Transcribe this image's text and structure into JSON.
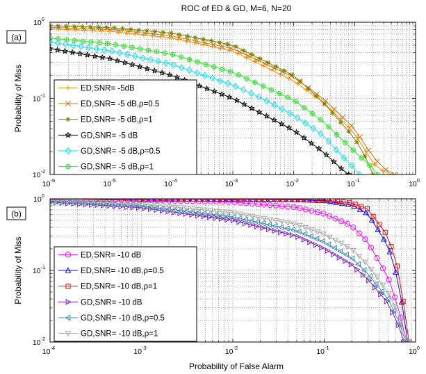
{
  "figure": {
    "title": "ROC of ED & GD, M=6, N=20",
    "xlabel": "Probability of False Alarm"
  },
  "chart_data": [
    {
      "type": "line",
      "panel_label": "(a)",
      "ylabel": "Probability of Miss",
      "xscale": "log",
      "yscale": "log",
      "xlim": [
        1e-06,
        1
      ],
      "ylim": [
        0.01,
        1
      ],
      "grid": true,
      "legend_position": "bottom-left",
      "x_ticks": [
        "10",
        "10",
        "10",
        "10",
        "10",
        "10",
        "10"
      ],
      "x_tick_exponents": [
        "-6",
        "-5",
        "-4",
        "-3",
        "-2",
        "-1",
        "0"
      ],
      "y_ticks": [
        "10",
        "10",
        "10"
      ],
      "y_tick_exponents": [
        "-2",
        "-1",
        "0"
      ],
      "series": [
        {
          "name": "ED,SNR= -5dB",
          "color": "#ff8c00",
          "marker": "plus",
          "x": [
            1e-06,
            1e-05,
            0.0001,
            0.001,
            0.01,
            0.03,
            0.1,
            0.2,
            0.3,
            0.4
          ],
          "y": [
            0.82,
            0.76,
            0.62,
            0.42,
            0.17,
            0.09,
            0.035,
            0.014,
            0.011,
            0.01
          ]
        },
        {
          "name": "ED,SNR= -5 dB,ρ=0.5",
          "color": "#c87814",
          "marker": "x",
          "x": [
            1e-06,
            1e-05,
            0.0001,
            0.001,
            0.01,
            0.03,
            0.1,
            0.2,
            0.3,
            0.45
          ],
          "y": [
            0.86,
            0.8,
            0.66,
            0.45,
            0.19,
            0.1,
            0.04,
            0.017,
            0.012,
            0.01
          ]
        },
        {
          "name": "ED,SNR= -5 dB,ρ=1",
          "color": "#808000",
          "marker": "star",
          "x": [
            1e-06,
            1e-05,
            0.0001,
            0.001,
            0.01,
            0.03,
            0.1,
            0.15,
            0.2
          ],
          "y": [
            0.9,
            0.85,
            0.72,
            0.5,
            0.2,
            0.09,
            0.03,
            0.017,
            0.01
          ]
        },
        {
          "name": "GD,SNR= -5 dB",
          "color": "#000000",
          "marker": "hexagram",
          "x": [
            1e-06,
            1e-05,
            0.0001,
            0.001,
            0.003,
            0.01,
            0.03,
            0.06,
            0.08
          ],
          "y": [
            0.45,
            0.33,
            0.2,
            0.1,
            0.063,
            0.038,
            0.02,
            0.012,
            0.01
          ]
        },
        {
          "name": "GD,SNR= -5 dB,ρ=0.5",
          "color": "#00e5ff",
          "marker": "diamond",
          "x": [
            1e-06,
            1e-05,
            0.0001,
            0.001,
            0.003,
            0.01,
            0.03,
            0.06,
            0.1,
            0.12
          ],
          "y": [
            0.55,
            0.42,
            0.28,
            0.15,
            0.1,
            0.06,
            0.033,
            0.018,
            0.012,
            0.01
          ]
        },
        {
          "name": "GD,SNR= -5 dB,ρ=1",
          "color": "#33e533",
          "marker": "circle-star",
          "x": [
            1e-06,
            1e-05,
            0.0001,
            0.001,
            0.01,
            0.03,
            0.1,
            0.2,
            0.24
          ],
          "y": [
            0.62,
            0.52,
            0.38,
            0.22,
            0.095,
            0.05,
            0.02,
            0.012,
            0.01
          ]
        }
      ]
    },
    {
      "type": "line",
      "panel_label": "(b)",
      "ylabel": "Probability of Miss",
      "xscale": "log",
      "yscale": "log",
      "xlim": [
        0.0001,
        1
      ],
      "ylim": [
        0.01,
        1
      ],
      "grid": true,
      "legend_position": "bottom-left",
      "x_ticks": [
        "10",
        "10",
        "10",
        "10",
        "10"
      ],
      "x_tick_exponents": [
        "-4",
        "-3",
        "-2",
        "-1",
        "0"
      ],
      "y_ticks": [
        "10",
        "10",
        "10"
      ],
      "y_tick_exponents": [
        "-2",
        "-1",
        "0"
      ],
      "series": [
        {
          "name": "ED,SNR= -10 dB",
          "color": "#ff00ff",
          "marker": "circle",
          "x": [
            0.0001,
            0.001,
            0.01,
            0.05,
            0.1,
            0.2,
            0.3,
            0.5,
            0.65,
            0.75,
            0.8
          ],
          "y": [
            0.98,
            0.96,
            0.9,
            0.76,
            0.62,
            0.42,
            0.25,
            0.08,
            0.03,
            0.014,
            0.01
          ]
        },
        {
          "name": "ED,SNR= -10 dB,ρ=0.5",
          "color": "#0000ff",
          "marker": "triangle-up",
          "x": [
            0.0001,
            0.001,
            0.01,
            0.05,
            0.1,
            0.2,
            0.3,
            0.5,
            0.65,
            0.75,
            0.82
          ],
          "y": [
            0.995,
            0.99,
            0.985,
            0.97,
            0.94,
            0.82,
            0.62,
            0.22,
            0.07,
            0.022,
            0.01
          ]
        },
        {
          "name": "ED,SNR= -10 dB,ρ=1",
          "color": "#ff0000",
          "marker": "square",
          "x": [
            0.0001,
            0.001,
            0.01,
            0.05,
            0.1,
            0.2,
            0.3,
            0.5,
            0.65,
            0.75,
            0.85
          ],
          "y": [
            0.995,
            0.993,
            0.99,
            0.98,
            0.96,
            0.88,
            0.72,
            0.3,
            0.1,
            0.03,
            0.01
          ]
        },
        {
          "name": "GD,SNR= -10 dB",
          "color": "#7a1fbf",
          "marker": "triangle-right",
          "x": [
            0.0001,
            0.001,
            0.01,
            0.05,
            0.1,
            0.2,
            0.3,
            0.5,
            0.65,
            0.75
          ],
          "y": [
            0.9,
            0.75,
            0.5,
            0.3,
            0.2,
            0.12,
            0.075,
            0.035,
            0.017,
            0.01
          ]
        },
        {
          "name": "GD,SNR= -10 dB,ρ=0.5",
          "color": "#3c8fb0",
          "marker": "triangle-left",
          "x": [
            0.0001,
            0.001,
            0.01,
            0.05,
            0.1,
            0.2,
            0.3,
            0.5,
            0.65,
            0.78
          ],
          "y": [
            0.92,
            0.8,
            0.56,
            0.36,
            0.25,
            0.15,
            0.09,
            0.04,
            0.02,
            0.01
          ]
        },
        {
          "name": "GD,SNR= -10 dB,ρ=1",
          "color": "#a8a8a8",
          "marker": "triangle-down",
          "x": [
            0.0001,
            0.001,
            0.01,
            0.05,
            0.1,
            0.2,
            0.3,
            0.5,
            0.65,
            0.8
          ],
          "y": [
            0.95,
            0.85,
            0.64,
            0.44,
            0.32,
            0.2,
            0.12,
            0.05,
            0.025,
            0.01
          ]
        }
      ]
    }
  ]
}
